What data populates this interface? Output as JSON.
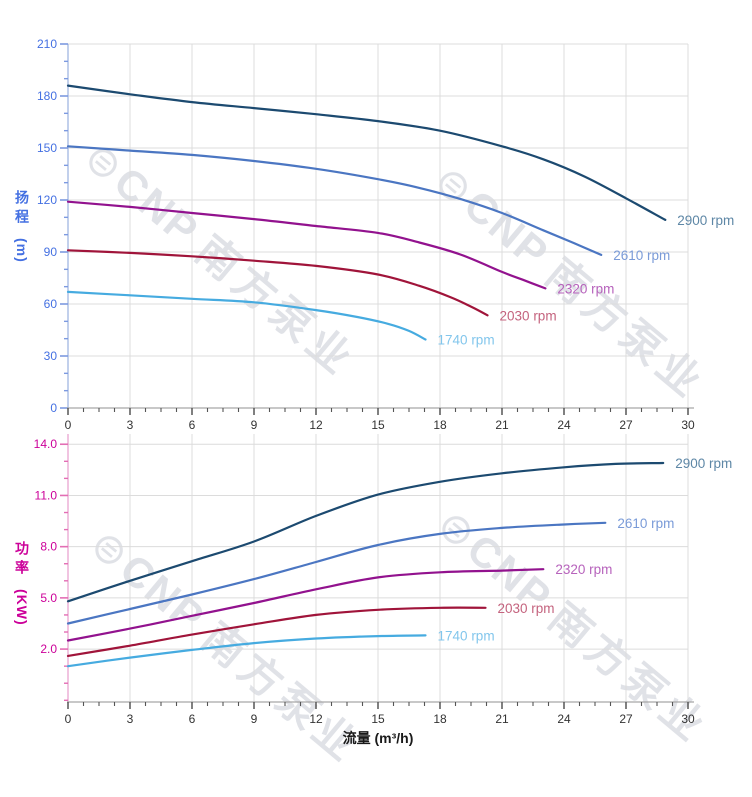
{
  "watermark": {
    "logo_glyph": "⊜",
    "brand": "CNP",
    "company": "南方泵业"
  },
  "chart_data": [
    {
      "type": "line",
      "name": "head",
      "title": "",
      "xlabel": "流量 (m³/h)",
      "ylabel": "扬程",
      "ylabel_unit": "(m)",
      "xlim": [
        0,
        30
      ],
      "ylim": [
        0,
        210
      ],
      "x_ticks": [
        0,
        3,
        6,
        9,
        12,
        15,
        18,
        21,
        24,
        27,
        30
      ],
      "x_tick_labels": [
        "0",
        "3",
        "6",
        "9",
        "12",
        "15",
        "18",
        "21",
        "24",
        "27",
        "30"
      ],
      "y_ticks": [
        0,
        30,
        60,
        90,
        120,
        150,
        180,
        210
      ],
      "y_tick_labels": [
        "0",
        "30",
        "60",
        "90",
        "120",
        "150",
        "180",
        "210"
      ],
      "x_minor_step": 0.75,
      "y_minor_step": 10,
      "grid": true,
      "axis_label_color": "#4470E2",
      "axis_line_color": "#A9BCE4",
      "tick_color": "#7D9AE0",
      "series": [
        {
          "name": "2900 rpm",
          "color": "#1C4A70",
          "label_color": "#5E87A6",
          "points": [
            [
              0,
              186
            ],
            [
              3,
              181
            ],
            [
              6,
              176.5
            ],
            [
              9,
              173
            ],
            [
              12,
              169.5
            ],
            [
              15,
              165.5
            ],
            [
              18,
              160
            ],
            [
              21,
              151
            ],
            [
              23,
              143.5
            ],
            [
              25,
              133.5
            ],
            [
              27,
              121
            ],
            [
              28.9,
              108.5
            ]
          ]
        },
        {
          "name": "2610 rpm",
          "color": "#4B76C2",
          "label_color": "#7A9BD8",
          "points": [
            [
              0,
              151
            ],
            [
              3,
              148.5
            ],
            [
              6,
              146
            ],
            [
              9,
              142.5
            ],
            [
              12,
              138
            ],
            [
              15,
              132
            ],
            [
              17,
              127
            ],
            [
              19,
              120.5
            ],
            [
              21,
              112.5
            ],
            [
              23,
              102.5
            ],
            [
              24.5,
              95
            ],
            [
              25.8,
              88.3
            ]
          ]
        },
        {
          "name": "2320 rpm",
          "color": "#92128E",
          "label_color": "#B763BC",
          "points": [
            [
              0,
              119
            ],
            [
              3,
              116
            ],
            [
              6,
              112.5
            ],
            [
              9,
              109
            ],
            [
              12,
              105
            ],
            [
              15,
              101
            ],
            [
              17,
              95.5
            ],
            [
              19,
              88.5
            ],
            [
              21,
              78.5
            ],
            [
              22,
              74
            ],
            [
              23.1,
              69
            ]
          ]
        },
        {
          "name": "2030 rpm",
          "color": "#A0143A",
          "label_color": "#C4637E",
          "points": [
            [
              0,
              91
            ],
            [
              3,
              89.5
            ],
            [
              6,
              87.5
            ],
            [
              9,
              85
            ],
            [
              12,
              82
            ],
            [
              15,
              77
            ],
            [
              17,
              70.5
            ],
            [
              18.5,
              64
            ],
            [
              19.5,
              58.5
            ],
            [
              20.3,
              53.5
            ]
          ]
        },
        {
          "name": "1740 rpm",
          "color": "#46ABE0",
          "label_color": "#82C6EC",
          "points": [
            [
              0,
              67
            ],
            [
              3,
              65
            ],
            [
              6,
              63
            ],
            [
              9,
              61
            ],
            [
              12,
              56.5
            ],
            [
              14,
              52.5
            ],
            [
              15.5,
              48.5
            ],
            [
              16.5,
              44.5
            ],
            [
              17.3,
              39.5
            ]
          ]
        }
      ]
    },
    {
      "type": "line",
      "name": "power",
      "title": "",
      "xlabel": "流量 (m³/h)",
      "ylabel": "功率",
      "ylabel_unit": "(KW)",
      "xlim": [
        0,
        30
      ],
      "ylim": [
        -1.1,
        14.6
      ],
      "x_ticks": [
        0,
        3,
        6,
        9,
        12,
        15,
        18,
        21,
        24,
        27,
        30
      ],
      "x_tick_labels": [
        "0",
        "3",
        "6",
        "9",
        "12",
        "15",
        "18",
        "21",
        "24",
        "27",
        "30"
      ],
      "y_ticks": [
        2,
        5,
        8,
        11,
        14
      ],
      "y_tick_labels": [
        "2.0",
        "5.0",
        "8.0",
        "11.0",
        "14.0"
      ],
      "x_minor_step": 0.75,
      "y_minor_step": 1,
      "grid": true,
      "axis_label_color": "#CC0099",
      "axis_line_color": "#EBAAD4",
      "tick_color": "#E36EB4",
      "series": [
        {
          "name": "2900 rpm",
          "color": "#1C4A70",
          "label_color": "#5E87A6",
          "points": [
            [
              0,
              4.8
            ],
            [
              3,
              6.0
            ],
            [
              6,
              7.15
            ],
            [
              9,
              8.3
            ],
            [
              12,
              9.8
            ],
            [
              15,
              11.05
            ],
            [
              18,
              11.8
            ],
            [
              21,
              12.3
            ],
            [
              24,
              12.65
            ],
            [
              26.5,
              12.85
            ],
            [
              28.8,
              12.9
            ]
          ]
        },
        {
          "name": "2610 rpm",
          "color": "#4B76C2",
          "label_color": "#7A9BD8",
          "points": [
            [
              0,
              3.5
            ],
            [
              3,
              4.35
            ],
            [
              6,
              5.2
            ],
            [
              9,
              6.1
            ],
            [
              12,
              7.1
            ],
            [
              15,
              8.1
            ],
            [
              18,
              8.75
            ],
            [
              21,
              9.1
            ],
            [
              24,
              9.3
            ],
            [
              26,
              9.4
            ]
          ]
        },
        {
          "name": "2320 rpm",
          "color": "#92128E",
          "label_color": "#B763BC",
          "points": [
            [
              0,
              2.5
            ],
            [
              3,
              3.2
            ],
            [
              6,
              3.95
            ],
            [
              9,
              4.7
            ],
            [
              12,
              5.5
            ],
            [
              15,
              6.2
            ],
            [
              18,
              6.5
            ],
            [
              21,
              6.6
            ],
            [
              23,
              6.68
            ]
          ]
        },
        {
          "name": "2030 rpm",
          "color": "#A0143A",
          "label_color": "#C4637E",
          "points": [
            [
              0,
              1.6
            ],
            [
              3,
              2.2
            ],
            [
              6,
              2.85
            ],
            [
              9,
              3.45
            ],
            [
              12,
              4.0
            ],
            [
              15,
              4.3
            ],
            [
              18,
              4.42
            ],
            [
              20.2,
              4.42
            ]
          ]
        },
        {
          "name": "1740 rpm",
          "color": "#46ABE0",
          "label_color": "#82C6EC",
          "points": [
            [
              0,
              1.0
            ],
            [
              3,
              1.5
            ],
            [
              6,
              1.95
            ],
            [
              9,
              2.35
            ],
            [
              12,
              2.62
            ],
            [
              15,
              2.76
            ],
            [
              17.3,
              2.8
            ]
          ]
        }
      ]
    }
  ],
  "style": {
    "grid_color": "#DCDCDC",
    "x_label_color": "#333333",
    "x_axis_line_color": "#A6A6A6",
    "x_tick_color": "#555555"
  }
}
